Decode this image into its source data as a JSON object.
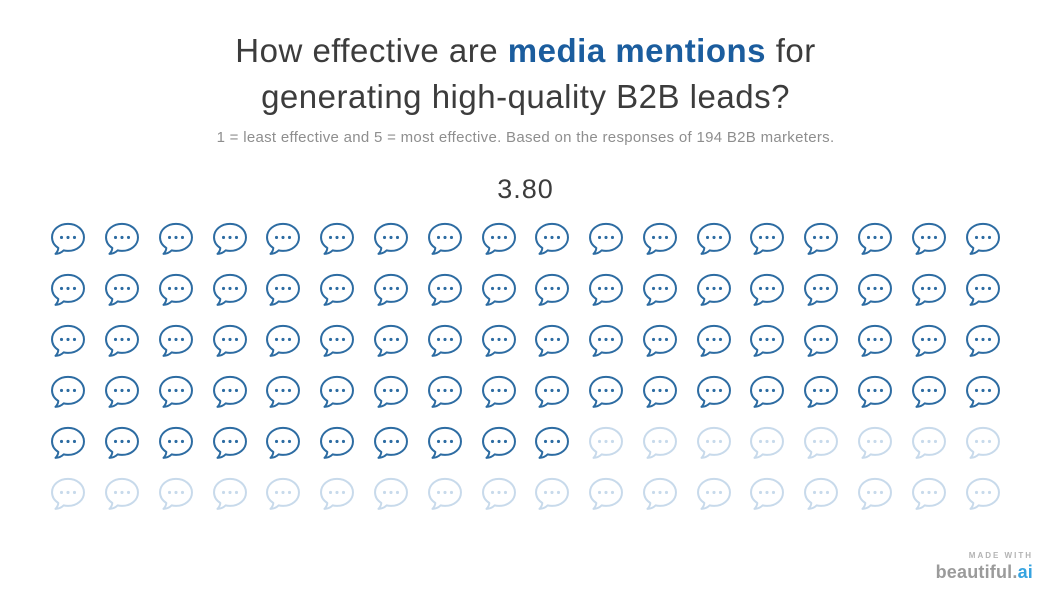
{
  "title": {
    "line1_pre": "How effective are ",
    "line1_highlight": "media mentions",
    "line1_post": " for",
    "line2": "generating high-quality B2B leads?"
  },
  "subtitle": "1 = least effective and 5 = most effective. Based on the responses of 194 B2B marketers.",
  "footer": {
    "made_with": "MADE WITH",
    "brand_main": "beautiful.",
    "brand_ai": "ai"
  },
  "colors": {
    "accent_blue": "#1b5d9e",
    "icon_filled": "#2d6ca2",
    "icon_unfilled": "#c8daeb",
    "title_text": "#3c3c3c",
    "subtitle_text": "#8e8e8e"
  },
  "chart_data": {
    "type": "pictograph",
    "title": "How effective are media mentions for generating high-quality B2B leads?",
    "subtitle": "1 = least effective and 5 = most effective. Based on the responses of 194 B2B marketers.",
    "value": 3.8,
    "value_label": "3.80",
    "scale_min": 1,
    "scale_max": 5,
    "respondents": 194,
    "icon": "speech-bubble-icon",
    "rows": 6,
    "columns": 18,
    "total_icons": 108,
    "filled_icons": 82,
    "fill_fraction": 0.76,
    "filled_color": "#2d6ca2",
    "unfilled_color": "#c8daeb"
  }
}
